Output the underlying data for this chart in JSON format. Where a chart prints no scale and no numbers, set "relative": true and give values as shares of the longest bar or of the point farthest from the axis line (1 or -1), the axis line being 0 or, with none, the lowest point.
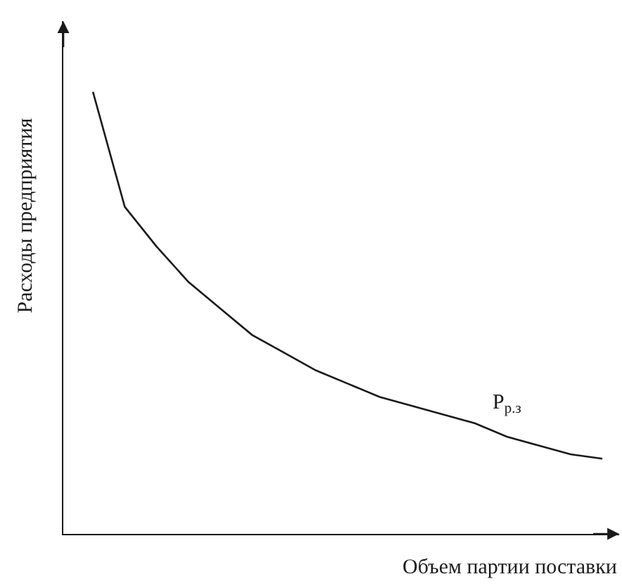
{
  "chart_data": {
    "type": "line",
    "relative": true,
    "xlabel": "Объем партии поставки",
    "ylabel": "Расходы предприятия",
    "categories": [
      null,
      null,
      null,
      null,
      null,
      null,
      null,
      null,
      null,
      null,
      null,
      null,
      null,
      null,
      null,
      null,
      null
    ],
    "series": [
      {
        "name": "P$_{р.з}$",
        "color": "#1a1a1a",
        "values": [
          1,
          0.74,
          0.65,
          0.57,
          0.51,
          0.45,
          0.41,
          0.37,
          0.34,
          0.31,
          0.29,
          0.27,
          0.25,
          0.22,
          0.2,
          0.18,
          0.17
        ]
      }
    ],
    "grid": false,
    "legend": false,
    "marker": "none",
    "line_style": "solid"
  }
}
